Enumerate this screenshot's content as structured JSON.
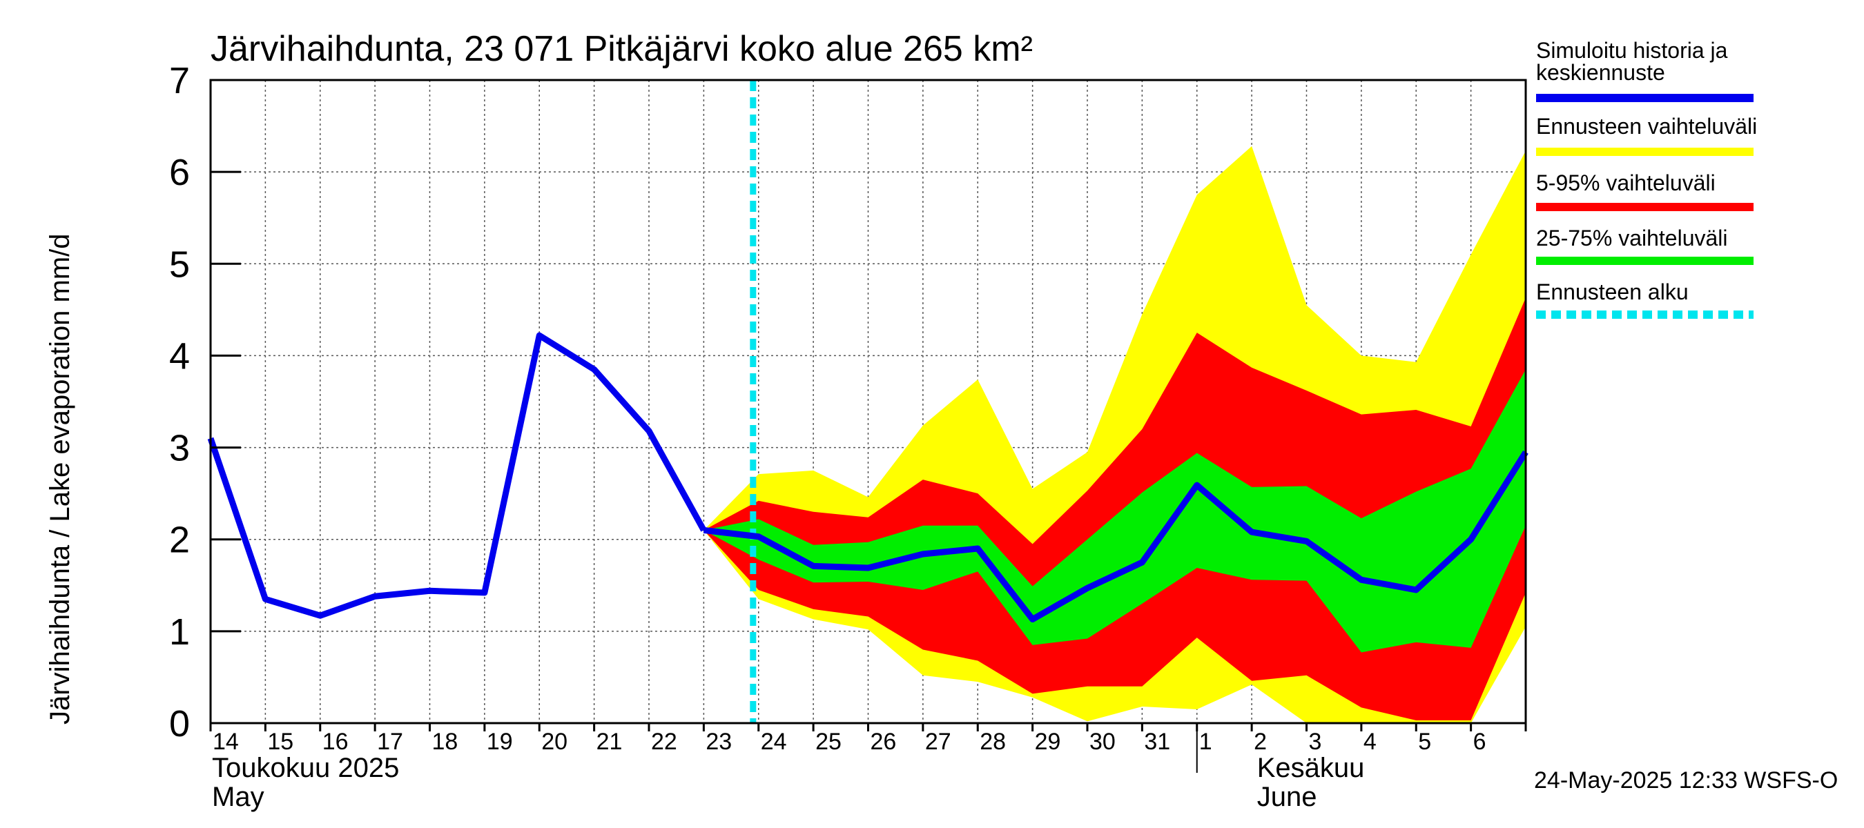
{
  "chart_data": {
    "type": "area",
    "title": "Järvihaihdunta, 23 071 Pitkäjärvi koko alue 265 km²",
    "ylabel": "Järvihaihdunta / Lake evaporation   mm/d",
    "ylim": [
      0,
      7
    ],
    "yticks": [
      "0",
      "1",
      "2",
      "3",
      "4",
      "5",
      "6",
      "7"
    ],
    "grid": true,
    "categories": [
      "14",
      "15",
      "16",
      "17",
      "18",
      "19",
      "20",
      "21",
      "22",
      "23",
      "24",
      "25",
      "26",
      "27",
      "28",
      "29",
      "30",
      "31",
      "1",
      "2",
      "3",
      "4",
      "5",
      "6"
    ],
    "month_labels": [
      {
        "line1": "Toukokuu  2025",
        "line2": "May",
        "at_day_index": 0
      },
      {
        "line1": "Kesäkuu",
        "line2": "June",
        "at_day_index": 18
      }
    ],
    "forecast_start_day": 9.9,
    "history": {
      "name": "Simuloitu historia ja keskiennuste",
      "x": [
        0,
        1,
        2,
        3,
        4,
        5,
        6,
        7,
        8,
        9
      ],
      "values": [
        3.1,
        1.35,
        1.17,
        1.38,
        1.44,
        1.42,
        4.22,
        3.85,
        3.18,
        2.1
      ]
    },
    "forecast": {
      "x": [
        9,
        10,
        11,
        12,
        13,
        14,
        15,
        16,
        17,
        18,
        19,
        20,
        21,
        22,
        23,
        24
      ],
      "median": [
        2.1,
        2.03,
        1.71,
        1.69,
        1.84,
        1.9,
        1.13,
        1.47,
        1.75,
        2.59,
        2.08,
        1.98,
        1.56,
        1.45,
        2.0,
        2.95
      ],
      "yellow_min": [
        2.1,
        1.35,
        1.13,
        1.02,
        0.52,
        0.45,
        0.28,
        0.02,
        0.18,
        0.15,
        0.42,
        0.0,
        0.0,
        0.0,
        0.0,
        1.05
      ],
      "yellow_max": [
        2.1,
        2.71,
        2.75,
        2.46,
        3.24,
        3.74,
        2.55,
        2.95,
        4.45,
        5.75,
        6.28,
        4.55,
        4.0,
        3.93,
        5.1,
        6.23
      ],
      "red_min": [
        2.1,
        1.45,
        1.24,
        1.16,
        0.8,
        0.68,
        0.32,
        0.4,
        0.4,
        0.93,
        0.46,
        0.52,
        0.17,
        0.03,
        0.03,
        1.42
      ],
      "red_max": [
        2.1,
        2.42,
        2.3,
        2.24,
        2.65,
        2.5,
        1.95,
        2.53,
        3.2,
        4.25,
        3.87,
        3.62,
        3.36,
        3.41,
        3.23,
        4.63
      ],
      "green_min": [
        2.1,
        1.78,
        1.53,
        1.54,
        1.45,
        1.65,
        0.85,
        0.92,
        1.3,
        1.69,
        1.56,
        1.55,
        0.77,
        0.88,
        0.82,
        2.15
      ],
      "green_max": [
        2.1,
        2.22,
        1.94,
        1.97,
        2.15,
        2.15,
        1.49,
        2.0,
        2.51,
        2.94,
        2.57,
        2.58,
        2.23,
        2.52,
        2.77,
        3.85
      ]
    },
    "colors": {
      "history": "#0000ee",
      "yellow": "#ffff00",
      "red": "#ff0000",
      "green": "#00ee00",
      "forecast_start": "#00e5ee"
    },
    "legend": [
      {
        "label": "Simuloitu historia ja keskiennuste",
        "color": "#0000ee"
      },
      {
        "label": "Ennusteen vaihteluväli",
        "color": "#ffff00"
      },
      {
        "label": "5-95% vaihteluväli",
        "color": "#ff0000"
      },
      {
        "label": "25-75% vaihteluväli",
        "color": "#00ee00"
      },
      {
        "label": "Ennusteen alku",
        "color": "#00e5ee"
      }
    ],
    "legend_position": "right",
    "timestamp": "24-May-2025 12:33 WSFS-O"
  }
}
